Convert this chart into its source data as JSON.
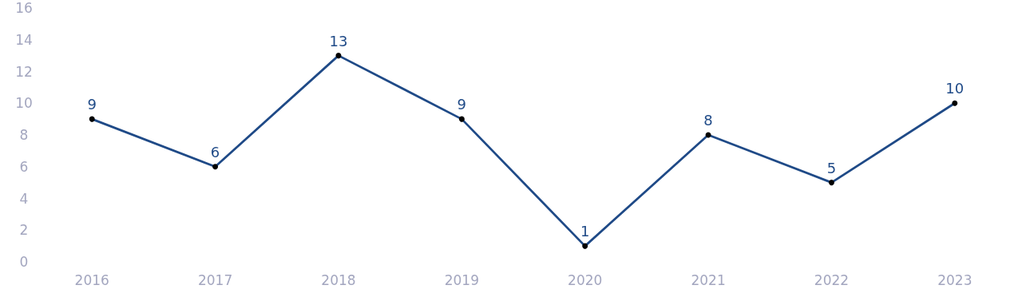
{
  "chart_data": {
    "type": "line",
    "categories": [
      "2016",
      "2017",
      "2018",
      "2019",
      "2020",
      "2021",
      "2022",
      "2023"
    ],
    "series": [
      {
        "color": "#1f4a87",
        "values": [
          9,
          6,
          13,
          9,
          1,
          8,
          5,
          10
        ]
      }
    ],
    "ylim": [
      0,
      16
    ],
    "yticks": [
      0,
      2,
      4,
      6,
      8,
      10,
      12,
      14,
      16
    ],
    "grid": false,
    "marker": "circle",
    "line_style": "solid",
    "data_labels": true
  }
}
